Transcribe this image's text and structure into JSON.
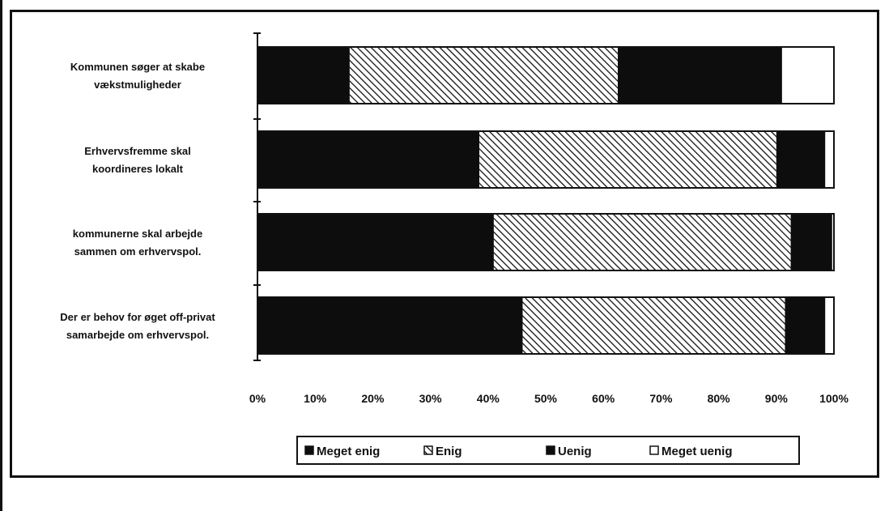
{
  "chart_data": {
    "type": "bar",
    "stacked": true,
    "orientation": "horizontal",
    "categories": [
      "Kommunen søger at skabe vækstmuligheder",
      "Erhvervsfremme skal koordineres lokalt",
      "kommunerne skal arbejde sammen om erhvervspol.",
      "Der er behov for øget off-privat samarbejde om erhvervspol."
    ],
    "category_lines": [
      [
        "Kommunen søger at skabe",
        "vækstmuligheder"
      ],
      [
        "Erhvervsfremme skal",
        "koordineres lokalt"
      ],
      [
        "kommunerne skal arbejde",
        "sammen om erhvervspol."
      ],
      [
        "Der er behov for øget off-privat",
        "samarbejde om erhvervspol."
      ]
    ],
    "series": [
      {
        "name": "Meget enig",
        "values": [
          16,
          38.5,
          41,
          46
        ],
        "fill": "solid-black"
      },
      {
        "name": "Enig",
        "values": [
          46.5,
          51.5,
          51.5,
          45.5
        ],
        "fill": "hatch"
      },
      {
        "name": "Uenig",
        "values": [
          28.5,
          8.5,
          7.2,
          7
        ],
        "fill": "solid-black"
      },
      {
        "name": "Meget uenig",
        "values": [
          9,
          1.5,
          0.3,
          1.5
        ],
        "fill": "white"
      }
    ],
    "x_ticks": [
      "0%",
      "10%",
      "20%",
      "30%",
      "40%",
      "50%",
      "60%",
      "70%",
      "80%",
      "90%",
      "100%"
    ],
    "xlim": [
      0,
      100
    ],
    "grid": false,
    "legend_position": "bottom",
    "title": "",
    "xlabel": "",
    "ylabel": ""
  }
}
